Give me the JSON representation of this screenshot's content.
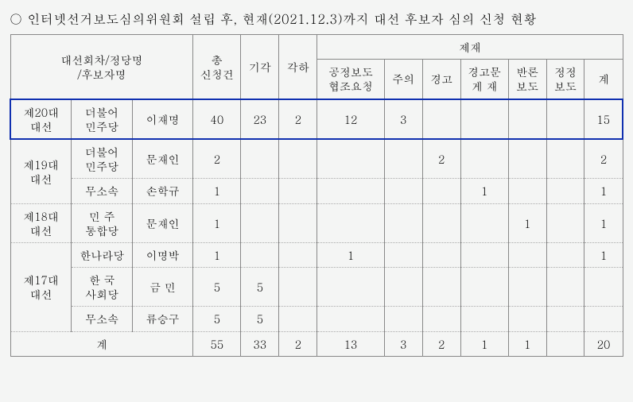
{
  "title": "○ 인터넷선거보도심의위원회 설립 후, 현재(2021.12.3)까지 대선 후보자 심의 신청 현황",
  "headers": {
    "group1": "대선회차/정당명\n/후보자명",
    "total": "총\n신청건",
    "reject": "기각",
    "dismiss": "각하",
    "sanction": "제재",
    "fair": "공정보도\n협조요청",
    "caution": "주의",
    "warn": "경고",
    "warnDoc": "경고문\n게  재",
    "counter": "반론\n보도",
    "correct": "정정\n보도",
    "sum": "계"
  },
  "rows": [
    {
      "elec": "제20대\n대선",
      "party": "더불어\n민주당",
      "cand": "이재명",
      "total": "40",
      "reject": "23",
      "dismiss": "2",
      "fair": "12",
      "caution": "3",
      "warn": "",
      "warnDoc": "",
      "counter": "",
      "correct": "",
      "sum": "15",
      "hl": true,
      "elecRowspan": 1
    },
    {
      "elec": "제19대\n대선",
      "party": "더불어\n민주당",
      "cand": "문재인",
      "total": "2",
      "reject": "",
      "dismiss": "",
      "fair": "",
      "caution": "",
      "warn": "2",
      "warnDoc": "",
      "counter": "",
      "correct": "",
      "sum": "2",
      "elecRowspan": 2
    },
    {
      "party": "무소속",
      "cand": "손학규",
      "total": "1",
      "reject": "",
      "dismiss": "",
      "fair": "",
      "caution": "",
      "warn": "",
      "warnDoc": "1",
      "counter": "",
      "correct": "",
      "sum": "1"
    },
    {
      "elec": "제18대\n대선",
      "party": "민  주\n통합당",
      "cand": "문재인",
      "total": "1",
      "reject": "",
      "dismiss": "",
      "fair": "",
      "caution": "",
      "warn": "",
      "warnDoc": "",
      "counter": "1",
      "correct": "",
      "sum": "1",
      "elecRowspan": 1
    },
    {
      "elec": "제17대\n대선",
      "party": "한나라당",
      "cand": "이명박",
      "total": "1",
      "reject": "",
      "dismiss": "",
      "fair": "1",
      "caution": "",
      "warn": "",
      "warnDoc": "",
      "counter": "",
      "correct": "",
      "sum": "1",
      "elecRowspan": 3
    },
    {
      "party": "한  국\n사회당",
      "cand": "금  민",
      "total": "5",
      "reject": "5",
      "dismiss": "",
      "fair": "",
      "caution": "",
      "warn": "",
      "warnDoc": "",
      "counter": "",
      "correct": "",
      "sum": ""
    },
    {
      "party": "무소속",
      "cand": "류승구",
      "total": "5",
      "reject": "5",
      "dismiss": "",
      "fair": "",
      "caution": "",
      "warn": "",
      "warnDoc": "",
      "counter": "",
      "correct": "",
      "sum": ""
    }
  ],
  "totals": {
    "label": "계",
    "total": "55",
    "reject": "33",
    "dismiss": "2",
    "fair": "13",
    "caution": "3",
    "warn": "2",
    "warnDoc": "1",
    "counter": "1",
    "correct": "",
    "sum": "20"
  }
}
